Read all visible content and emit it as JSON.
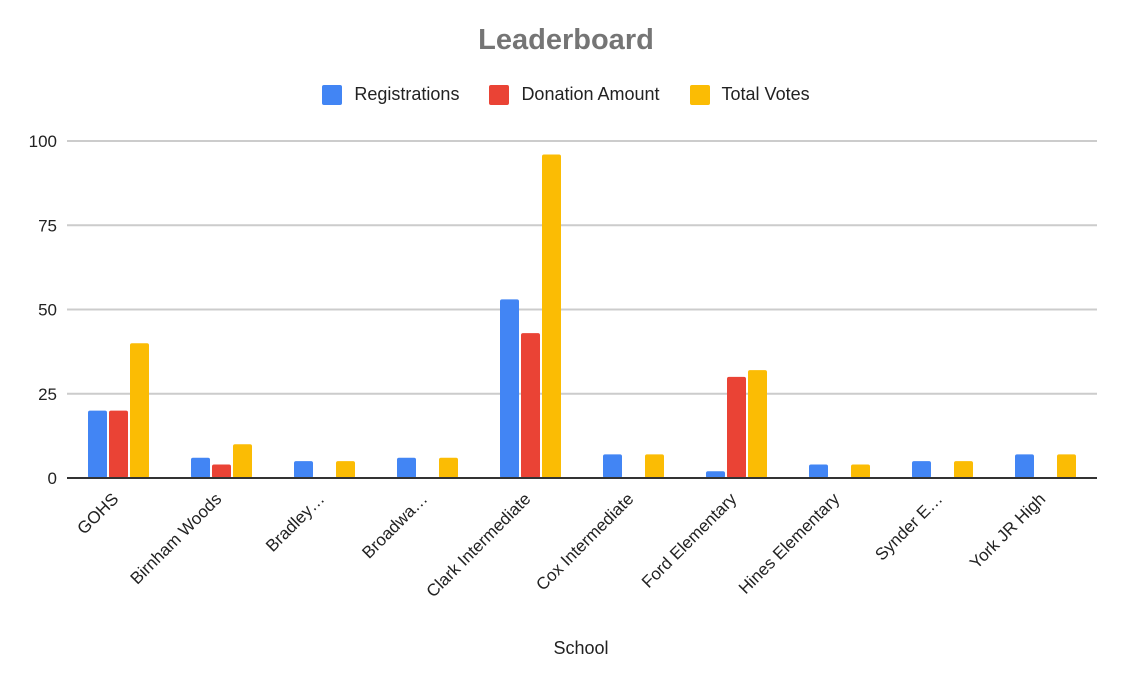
{
  "chart_data": {
    "type": "bar",
    "title": "Leaderboard",
    "xlabel": "School",
    "ylabel": "",
    "ylim": [
      0,
      100
    ],
    "yticks": [
      0,
      25,
      50,
      75,
      100
    ],
    "grid": true,
    "legend_position": "top",
    "categories": [
      "GOHS",
      "Birnham Woods",
      "Bradley…",
      "Broadwa…",
      "Clark Intermediate",
      "Cox Intermediate",
      "Ford Elementary",
      "Hines Elementary",
      "Synder E…",
      "York JR High"
    ],
    "series": [
      {
        "name": "Registrations",
        "color": "#4285f4",
        "values": [
          20,
          6,
          5,
          6,
          53,
          7,
          2,
          4,
          5,
          7
        ]
      },
      {
        "name": "Donation Amount",
        "color": "#ea4335",
        "values": [
          20,
          4,
          0,
          0,
          43,
          0,
          30,
          0,
          0,
          0
        ]
      },
      {
        "name": "Total Votes",
        "color": "#fbbc04",
        "values": [
          40,
          10,
          5,
          6,
          96,
          7,
          32,
          4,
          5,
          7
        ]
      }
    ]
  }
}
